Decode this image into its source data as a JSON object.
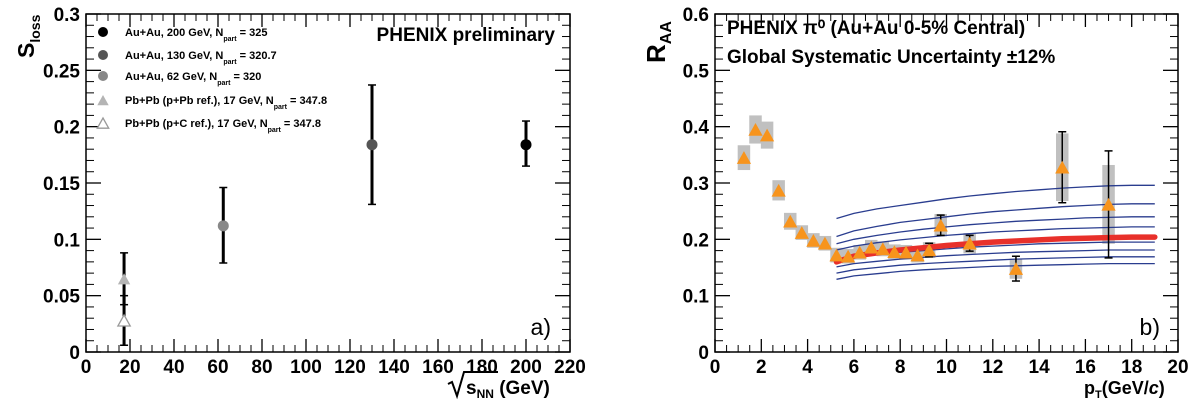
{
  "chart_data": [
    {
      "type": "scatter",
      "panel_label": "a)",
      "annotation": "PHENIX preliminary",
      "ylabel": "S",
      "ylabel_sub": "loss",
      "xlabel_root": "s",
      "xlabel_sub": "NN",
      "xlabel_unit": " (GeV)",
      "xlim": [
        0,
        220
      ],
      "ylim": [
        0,
        0.3
      ],
      "xticks": [
        "0",
        "20",
        "40",
        "60",
        "80",
        "100",
        "120",
        "140",
        "160",
        "180",
        "200",
        "220"
      ],
      "xtick_values": [
        0,
        20,
        40,
        60,
        80,
        100,
        120,
        140,
        160,
        180,
        200,
        220
      ],
      "yticks": [
        "0",
        "0.05",
        "0.1",
        "0.15",
        "0.2",
        "0.25",
        "0.3"
      ],
      "ytick_values": [
        0,
        0.05,
        0.1,
        0.15,
        0.2,
        0.25,
        0.3
      ],
      "grid": false,
      "legend_position": "top-left",
      "legend": [
        {
          "text": "Au+Au, 200 GeV, N",
          "sub": "part",
          "tail": " = 325",
          "marker": "circle",
          "color": "#000000"
        },
        {
          "text": "Au+Au, 130 GeV, N",
          "sub": "part",
          "tail": " = 320.7",
          "marker": "circle",
          "color": "#555555"
        },
        {
          "text": "Au+Au, 62 GeV, N",
          "sub": "part",
          "tail": " = 320",
          "marker": "circle",
          "color": "#888888"
        },
        {
          "text": "Pb+Pb (p+Pb ref.), 17 GeV, N",
          "sub": "part",
          "tail": " = 347.8",
          "marker": "triangle",
          "color": "#b4b4b4"
        },
        {
          "text": "Pb+Pb (p+C ref.), 17 GeV, N",
          "sub": "part",
          "tail": " = 347.8",
          "marker": "open-triangle",
          "color": "#9a9a9a"
        }
      ],
      "series": [
        {
          "name": "Au+Au, 200 GeV",
          "marker": "circle",
          "color": "#000000",
          "points": [
            {
              "x": 200,
              "y": 0.184,
              "ylo": 0.165,
              "yhi": 0.205
            }
          ]
        },
        {
          "name": "Au+Au, 130 GeV",
          "marker": "circle",
          "color": "#555555",
          "points": [
            {
              "x": 130,
              "y": 0.184,
              "ylo": 0.131,
              "yhi": 0.237
            }
          ]
        },
        {
          "name": "Au+Au, 62 GeV",
          "marker": "circle",
          "color": "#888888",
          "points": [
            {
              "x": 62.4,
              "y": 0.112,
              "ylo": 0.079,
              "yhi": 0.146
            }
          ]
        },
        {
          "name": "Pb+Pb (p+Pb ref.), 17 GeV",
          "marker": "triangle",
          "color": "#b4b4b4",
          "points": [
            {
              "x": 17.3,
              "y": 0.065,
              "ylo": 0.042,
              "yhi": 0.088
            }
          ]
        },
        {
          "name": "Pb+Pb (p+C ref.), 17 GeV",
          "marker": "open-triangle",
          "color": "#9a9a9a",
          "points": [
            {
              "x": 17.3,
              "y": 0.028,
              "ylo": 0.006,
              "yhi": 0.05
            }
          ]
        }
      ]
    },
    {
      "type": "scatter",
      "panel_label": "b)",
      "ylabel": "R",
      "ylabel_sub": "AA",
      "xlabel": "p",
      "xlabel_sub": "T",
      "xlabel_unit": "(GeV/",
      "xlabel_unit_italic": "c",
      "xlabel_unit_end": ")",
      "annotation_lines": [
        "PHENIX π⁰ (Au+Au 0-5% Central)",
        "Global Systematic Uncertainty ±12%"
      ],
      "xlim": [
        0,
        20
      ],
      "ylim": [
        0,
        0.6
      ],
      "xticks": [
        "0",
        "2",
        "4",
        "6",
        "8",
        "10",
        "12",
        "14",
        "16",
        "18",
        "20"
      ],
      "xtick_values": [
        0,
        2,
        4,
        6,
        8,
        10,
        12,
        14,
        16,
        18,
        20
      ],
      "yticks": [
        "0",
        "0.1",
        "0.2",
        "0.3",
        "0.4",
        "0.5",
        "0.6"
      ],
      "ytick_values": [
        0,
        0.1,
        0.2,
        0.3,
        0.4,
        0.5,
        0.6
      ],
      "grid": false,
      "colors": {
        "points": "#f7941d",
        "syst_band": "#c0c0c0",
        "theory_band": "#2a3d8f",
        "theory_best": "#e8302a"
      },
      "points": [
        {
          "x": 1.25,
          "y": 0.345,
          "sys": 0.022
        },
        {
          "x": 1.75,
          "y": 0.395,
          "sys": 0.025
        },
        {
          "x": 2.25,
          "y": 0.385,
          "sys": 0.024
        },
        {
          "x": 2.75,
          "y": 0.287,
          "sys": 0.018
        },
        {
          "x": 3.25,
          "y": 0.232,
          "sys": 0.015
        },
        {
          "x": 3.75,
          "y": 0.212,
          "sys": 0.013
        },
        {
          "x": 4.25,
          "y": 0.198,
          "sys": 0.013
        },
        {
          "x": 4.75,
          "y": 0.193,
          "sys": 0.013
        },
        {
          "x": 5.25,
          "y": 0.172,
          "sys": 0.013
        },
        {
          "x": 5.75,
          "y": 0.17,
          "sys": 0.013
        },
        {
          "x": 6.25,
          "y": 0.177,
          "sys": 0.013
        },
        {
          "x": 6.75,
          "y": 0.186,
          "sys": 0.013
        },
        {
          "x": 7.25,
          "y": 0.183,
          "sys": 0.013
        },
        {
          "x": 7.75,
          "y": 0.178,
          "sys": 0.013
        },
        {
          "x": 8.25,
          "y": 0.177,
          "sys": 0.013
        },
        {
          "x": 8.75,
          "y": 0.172,
          "sys": 0.013
        },
        {
          "x": 9.25,
          "y": 0.181,
          "sys": 0.014,
          "err": 0.012
        },
        {
          "x": 9.75,
          "y": 0.225,
          "sys": 0.02,
          "err": 0.018
        },
        {
          "x": 11.0,
          "y": 0.193,
          "sys": 0.018,
          "err": 0.014
        },
        {
          "x": 13.0,
          "y": 0.148,
          "sys": 0.018,
          "err": 0.022
        },
        {
          "x": 15.0,
          "y": 0.328,
          "sys": 0.06,
          "err": 0.063
        },
        {
          "x": 17.0,
          "y": 0.262,
          "sys": 0.07,
          "err": 0.095
        }
      ],
      "theory_curves": {
        "x": [
          5.25,
          6,
          7,
          8,
          9,
          10,
          11,
          12,
          13,
          14,
          15,
          16,
          17,
          18,
          19
        ],
        "bands": [
          [
            0.237,
            0.246,
            0.254,
            0.26,
            0.266,
            0.272,
            0.277,
            0.281,
            0.285,
            0.288,
            0.291,
            0.293,
            0.295,
            0.296,
            0.296
          ],
          [
            0.205,
            0.215,
            0.223,
            0.23,
            0.235,
            0.24,
            0.245,
            0.249,
            0.252,
            0.255,
            0.258,
            0.26,
            0.262,
            0.263,
            0.263
          ],
          [
            0.192,
            0.2,
            0.207,
            0.213,
            0.218,
            0.222,
            0.226,
            0.229,
            0.232,
            0.234,
            0.236,
            0.238,
            0.239,
            0.24,
            0.24
          ],
          [
            0.181,
            0.188,
            0.194,
            0.199,
            0.203,
            0.207,
            0.21,
            0.213,
            0.215,
            0.217,
            0.219,
            0.22,
            0.221,
            0.222,
            0.222
          ],
          [
            0.162,
            0.168,
            0.173,
            0.177,
            0.18,
            0.183,
            0.186,
            0.188,
            0.19,
            0.192,
            0.193,
            0.194,
            0.195,
            0.195,
            0.195
          ],
          [
            0.151,
            0.157,
            0.161,
            0.165,
            0.168,
            0.171,
            0.173,
            0.175,
            0.177,
            0.178,
            0.179,
            0.18,
            0.181,
            0.181,
            0.181
          ],
          [
            0.14,
            0.146,
            0.15,
            0.154,
            0.157,
            0.159,
            0.161,
            0.163,
            0.165,
            0.166,
            0.167,
            0.168,
            0.169,
            0.169,
            0.169
          ],
          [
            0.129,
            0.135,
            0.139,
            0.143,
            0.146,
            0.148,
            0.15,
            0.152,
            0.153,
            0.154,
            0.155,
            0.156,
            0.157,
            0.157,
            0.157
          ]
        ],
        "best": [
          0.16,
          0.17,
          0.176,
          0.181,
          0.185,
          0.189,
          0.192,
          0.195,
          0.197,
          0.199,
          0.201,
          0.202,
          0.203,
          0.204,
          0.204
        ]
      }
    }
  ]
}
